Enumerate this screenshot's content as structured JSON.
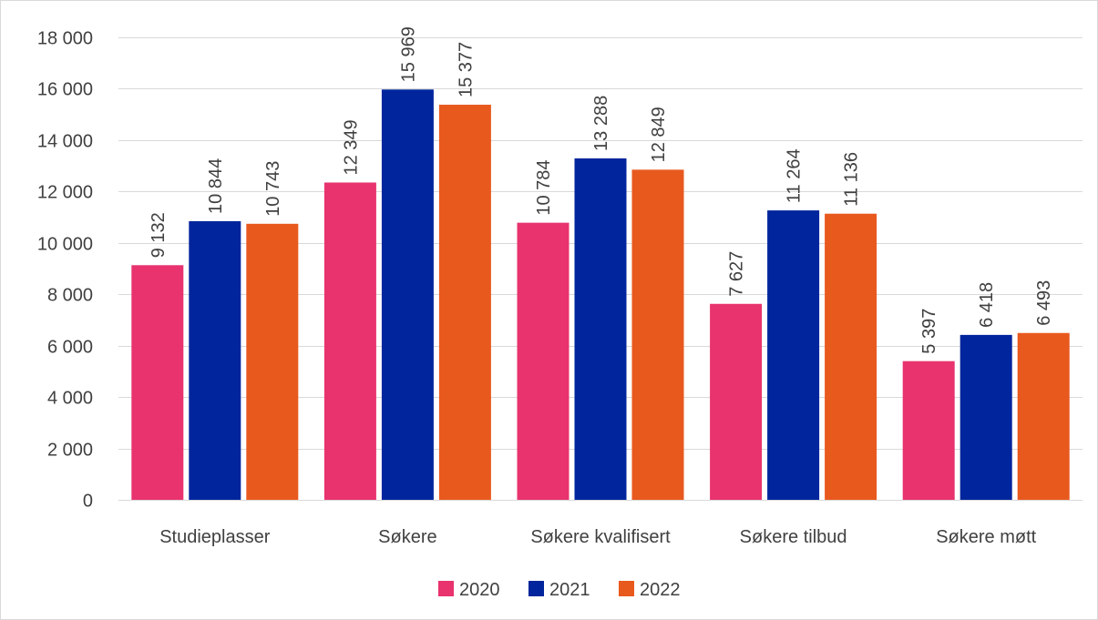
{
  "chart_data": {
    "type": "bar",
    "title": "",
    "xlabel": "",
    "ylabel": "",
    "categories": [
      "Studieplasser",
      "Søkere",
      "Søkere kvalifisert",
      "Søkere tilbud",
      "Søkere møtt"
    ],
    "series": [
      {
        "name": "2020",
        "color": "#e8336e",
        "values": [
          9132,
          12349,
          10784,
          7627,
          5397
        ],
        "labels": [
          "9 132",
          "12 349",
          "10 784",
          "7 627",
          "5 397"
        ]
      },
      {
        "name": "2021",
        "color": "#00259c",
        "values": [
          10844,
          15969,
          13288,
          11264,
          6418
        ],
        "labels": [
          "10 844",
          "15 969",
          "13 288",
          "11 264",
          "6 418"
        ]
      },
      {
        "name": "2022",
        "color": "#e8591e",
        "values": [
          10743,
          15377,
          12849,
          11136,
          6493
        ],
        "labels": [
          "10 743",
          "15 377",
          "12 849",
          "11 136",
          "6 493"
        ]
      }
    ],
    "ylim": [
      0,
      18000
    ],
    "yticks": [
      0,
      2000,
      4000,
      6000,
      8000,
      10000,
      12000,
      14000,
      16000,
      18000
    ],
    "ytick_labels": [
      "0",
      "2 000",
      "4 000",
      "6 000",
      "8 000",
      "10 000",
      "12 000",
      "14 000",
      "16 000",
      "18 000"
    ],
    "grid": true,
    "legend_position": "bottom-center"
  }
}
